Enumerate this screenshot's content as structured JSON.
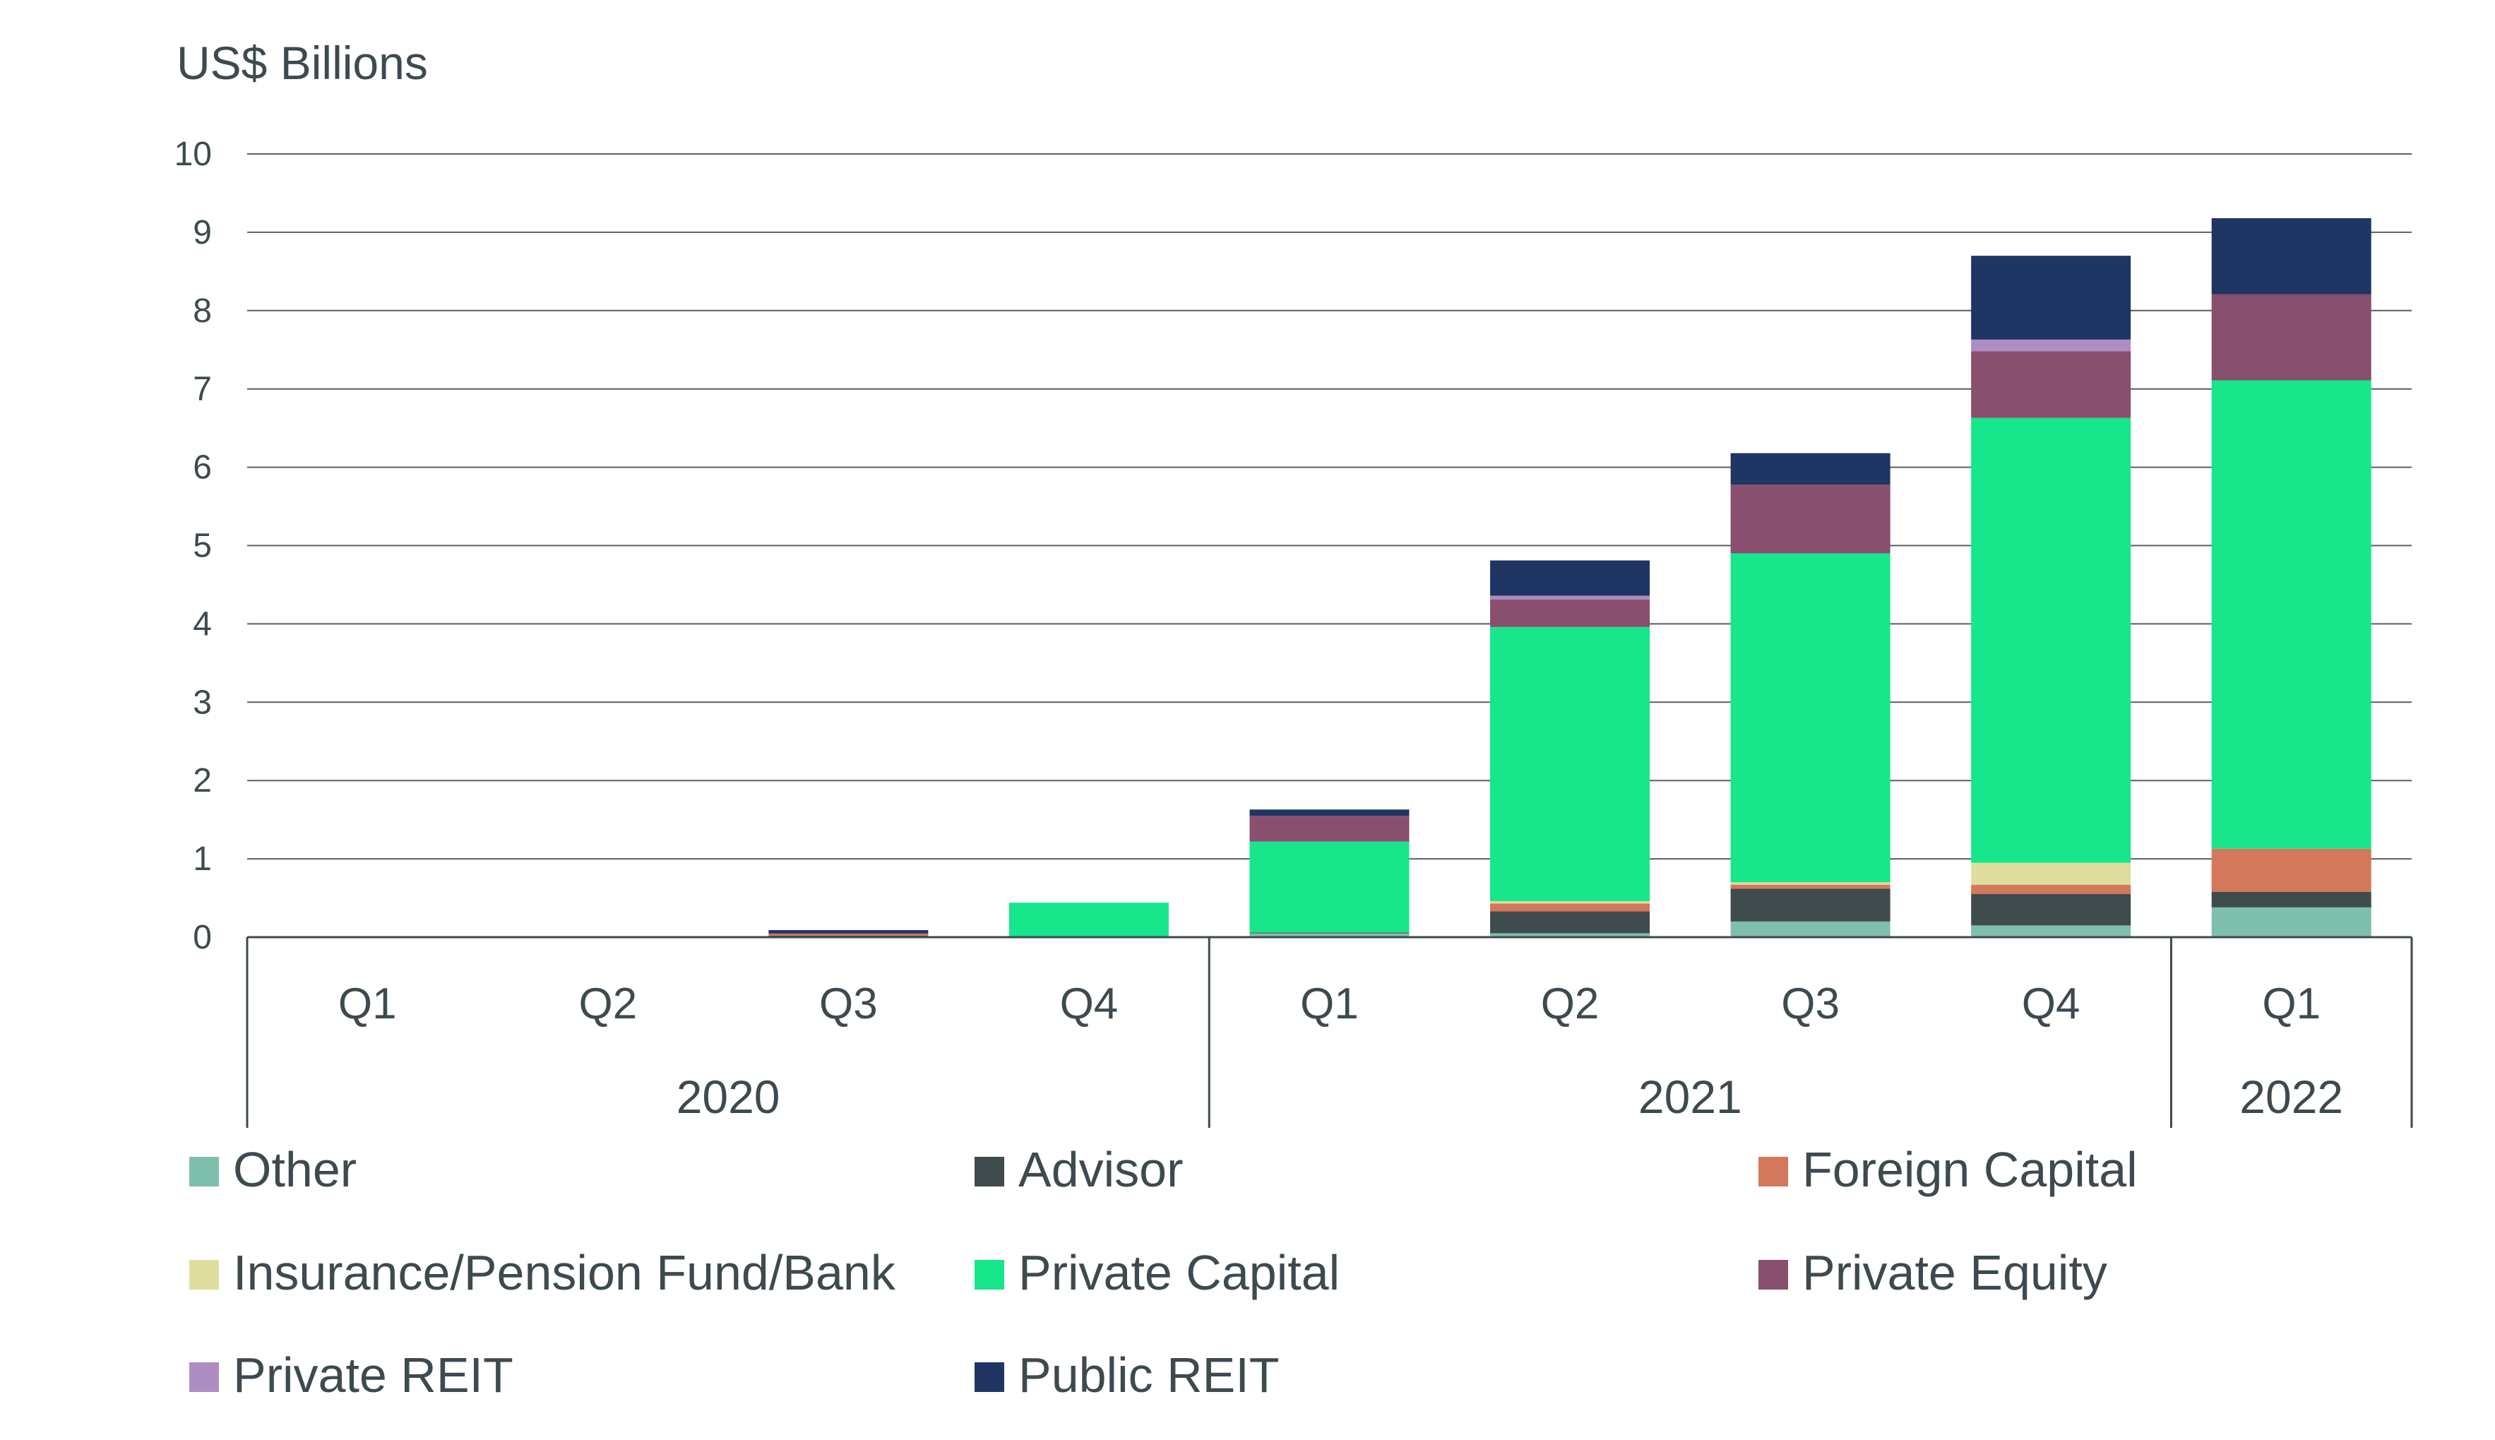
{
  "chart_data": {
    "type": "bar",
    "stacked": true,
    "ylabel": "US$ Billions",
    "ylim": [
      0,
      10
    ],
    "yticks": [
      "0",
      "1",
      "2",
      "3",
      "4",
      "5",
      "6",
      "7",
      "8",
      "9",
      "10"
    ],
    "grid": true,
    "legend_position": "bottom",
    "categories": [
      "Q1",
      "Q2",
      "Q3",
      "Q4",
      "Q1",
      "Q2",
      "Q3",
      "Q4",
      "Q1"
    ],
    "year_groups": [
      {
        "label": "2020",
        "count": 4
      },
      {
        "label": "2021",
        "count": 4
      },
      {
        "label": "2022",
        "count": 1
      }
    ],
    "series": [
      {
        "name": "Other",
        "color": "#7fbfae",
        "values": [
          0,
          0,
          0.01,
          0.01,
          0.05,
          0.05,
          0.2,
          0.15,
          0.38
        ]
      },
      {
        "name": "Advisor",
        "color": "#3f4b4d",
        "values": [
          0,
          0,
          0.01,
          0,
          0.01,
          0.28,
          0.42,
          0.4,
          0.2
        ]
      },
      {
        "name": "Foreign Capital",
        "color": "#d4785b",
        "values": [
          0,
          0,
          0.02,
          0,
          0,
          0.1,
          0.05,
          0.12,
          0.55
        ]
      },
      {
        "name": "Insurance/Pension Fund/Bank",
        "color": "#dede9f",
        "values": [
          0,
          0,
          0,
          0,
          0,
          0.03,
          0.03,
          0.28,
          0
        ]
      },
      {
        "name": "Private Capital",
        "color": "#17e68b",
        "values": [
          0,
          0,
          0,
          0.43,
          1.16,
          3.5,
          4.2,
          5.68,
          5.98
        ]
      },
      {
        "name": "Private Equity",
        "color": "#884f6e",
        "values": [
          0,
          0,
          0.01,
          0,
          0.33,
          0.35,
          0.88,
          0.85,
          1.1
        ]
      },
      {
        "name": "Private REIT",
        "color": "#ad8dc4",
        "values": [
          0,
          0,
          0,
          0,
          0,
          0.05,
          0,
          0.15,
          0
        ]
      },
      {
        "name": "Public REIT",
        "color": "#1f3563",
        "values": [
          0,
          0,
          0.04,
          0,
          0.08,
          0.45,
          0.4,
          1.07,
          0.97
        ]
      }
    ]
  }
}
